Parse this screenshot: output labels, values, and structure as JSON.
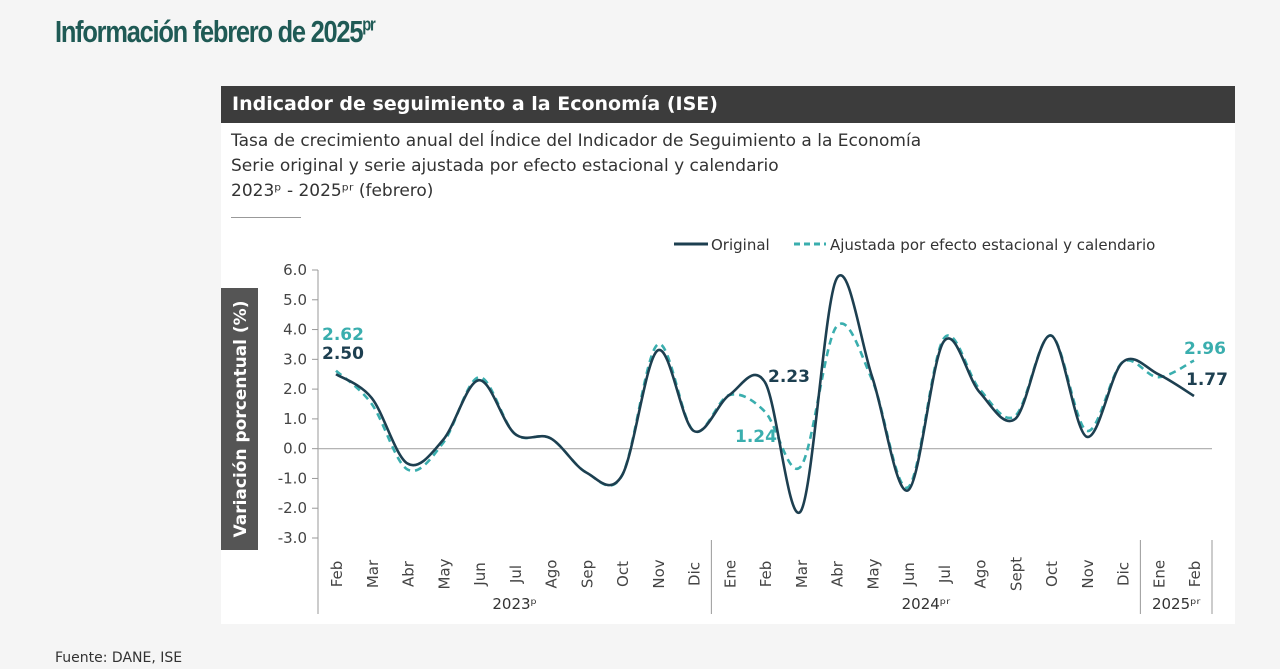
{
  "page": {
    "title": "Información febrero de 2025",
    "title_sup": "pr",
    "source": "Fuente: DANE, ISE"
  },
  "card": {
    "header": "Indicador de seguimiento a la Economía (ISE)",
    "subtitle_1": "Tasa de crecimiento anual del Índice del Indicador de Seguimiento a la Economía",
    "subtitle_2": "Serie original y serie ajustada por efecto estacional y calendario",
    "subtitle_3": "2023ᵖ - 2025ᵖʳ (febrero)"
  },
  "chart_data": {
    "type": "line",
    "ylabel": "Variación porcentual (%)",
    "ylim": [
      -3.0,
      6.0
    ],
    "yticks": [
      "6.0",
      "5.0",
      "4.0",
      "3.0",
      "2.0",
      "1.0",
      "0.0",
      "-1.0",
      "-2.0",
      "-3.0"
    ],
    "categories": [
      "Feb",
      "Mar",
      "Abr",
      "May",
      "Jun",
      "Jul",
      "Ago",
      "Sep",
      "Oct",
      "Nov",
      "Dic",
      "Ene",
      "Feb",
      "Mar",
      "Abr",
      "May",
      "Jun",
      "Jul",
      "Ago",
      "Sept",
      "Oct",
      "Nov",
      "Dic",
      "Ene",
      "Feb"
    ],
    "year_groups": [
      {
        "label": "2023ᵖ",
        "count": 11
      },
      {
        "label": "2024ᵖʳ",
        "count": 12
      },
      {
        "label": "2025ᵖʳ",
        "count": 2
      }
    ],
    "legend_position": "top-right",
    "series": [
      {
        "name": "Original",
        "color": "#1d3f50",
        "style": "solid",
        "values": [
          2.5,
          1.7,
          -0.5,
          0.3,
          2.3,
          0.5,
          0.35,
          -0.8,
          -0.9,
          3.3,
          0.6,
          1.8,
          2.23,
          -2.1,
          5.7,
          2.4,
          -1.4,
          3.6,
          1.9,
          1.0,
          3.8,
          0.4,
          2.9,
          2.5,
          1.77
        ]
      },
      {
        "name": "Ajustada por efecto estacional y calendario",
        "color": "#3aaeae",
        "style": "dashed",
        "values": [
          2.62,
          1.5,
          -0.7,
          0.2,
          2.4,
          0.5,
          0.35,
          -0.8,
          -0.9,
          3.5,
          0.6,
          1.8,
          1.24,
          -0.6,
          4.1,
          2.3,
          -1.3,
          3.7,
          2.0,
          1.1,
          3.8,
          0.6,
          2.9,
          2.4,
          2.96
        ]
      }
    ],
    "annotations": [
      {
        "text": "2.62",
        "series": 1,
        "index": 0
      },
      {
        "text": "2.50",
        "series": 0,
        "index": 0
      },
      {
        "text": "2.23",
        "series": 0,
        "index": 12
      },
      {
        "text": "1.24",
        "series": 1,
        "index": 12
      },
      {
        "text": "2.96",
        "series": 1,
        "index": 24
      },
      {
        "text": "1.77",
        "series": 0,
        "index": 24
      }
    ]
  }
}
